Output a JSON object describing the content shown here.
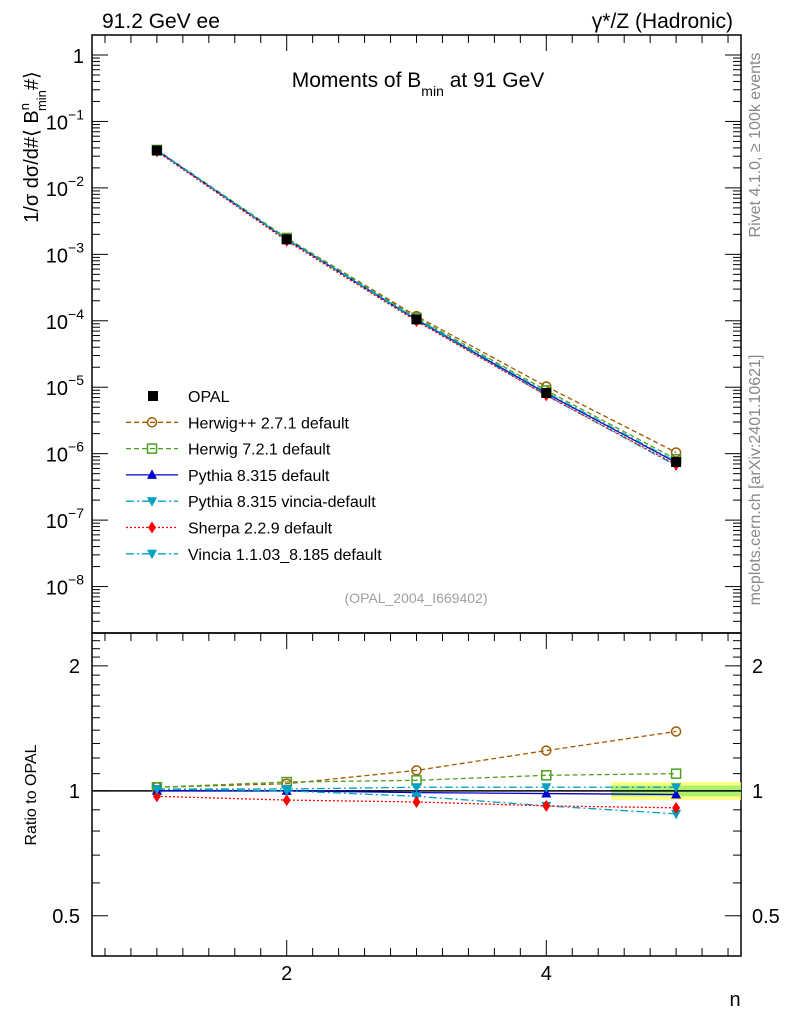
{
  "header": {
    "left": "91.2 GeV ee",
    "right": "γ*/Z (Hadronic)"
  },
  "side_labels": {
    "rivet": "Rivet 4.1.0, ≥ 100k events",
    "mcplots": "mcplots.cern.ch [arXiv:2401.10621]"
  },
  "chart_data": {
    "type": "line",
    "title": "Moments of B",
    "title_sub": "min",
    "title_tail": " at 91 GeV",
    "analysis_id": "(OPAL_2004_I669402)",
    "ylabel_main": "1/σ  dσ/d#⟨ B",
    "ylabel_sup": "n",
    "ylabel_sub": "min",
    "ylabel_tail": "#⟩",
    "ylabel_ratio": "Ratio to OPAL",
    "xlabel": "n",
    "x_range": [
      0.5,
      5.5
    ],
    "y_range_main": [
      2e-09,
      2
    ],
    "y_range_ratio": [
      0.4,
      2.4
    ],
    "x_ticks": [
      "2",
      "4"
    ],
    "y_ticks_main": [
      {
        "v": 1,
        "m": "1",
        "e": ""
      },
      {
        "v": 0.1,
        "m": "10",
        "e": "−1"
      },
      {
        "v": 0.01,
        "m": "10",
        "e": "−2"
      },
      {
        "v": 0.001,
        "m": "10",
        "e": "−3"
      },
      {
        "v": 0.0001,
        "m": "10",
        "e": "−4"
      },
      {
        "v": 1e-05,
        "m": "10",
        "e": "−5"
      },
      {
        "v": 1e-06,
        "m": "10",
        "e": "−6"
      },
      {
        "v": 1e-07,
        "m": "10",
        "e": "−7"
      },
      {
        "v": 1e-08,
        "m": "10",
        "e": "−8"
      }
    ],
    "y_ticks_ratio": [
      "0.5",
      "1",
      "2"
    ],
    "x": [
      1,
      2,
      3,
      4,
      5
    ],
    "reference": {
      "name": "OPAL",
      "values": [
        0.0365,
        0.00168,
        0.000105,
        8.2e-06,
        7.5e-07
      ],
      "band": [
        0.02,
        0.02,
        0.03,
        0.04,
        0.05
      ]
    },
    "series": [
      {
        "name": "Herwig++ 2.7.1 default",
        "color": "#a05a00",
        "dash": "5,3",
        "marker": "circle",
        "ratio": [
          1.02,
          1.04,
          1.12,
          1.25,
          1.39
        ]
      },
      {
        "name": "Herwig 7.2.1 default",
        "color": "#4fa01e",
        "dash": "5,3",
        "marker": "square",
        "ratio": [
          1.02,
          1.05,
          1.06,
          1.09,
          1.1
        ]
      },
      {
        "name": "Pythia 8.315 default",
        "color": "#0000cc",
        "dash": "",
        "marker": "triangle-up",
        "ratio": [
          1.0,
          1.0,
          0.99,
          0.985,
          0.98
        ]
      },
      {
        "name": "Pythia 8.315 vincia-default",
        "color": "#00a0c0",
        "dash": "8,3,2,3",
        "marker": "triangle-down",
        "ratio": [
          1.01,
          1.0,
          0.97,
          0.92,
          0.88
        ]
      },
      {
        "name": "Sherpa 2.2.9 default",
        "color": "#ff0000",
        "dash": "2,2",
        "marker": "diamond",
        "ratio": [
          0.97,
          0.95,
          0.94,
          0.92,
          0.91
        ]
      },
      {
        "name": "Vincia 1.1.03_8.185 default",
        "color": "#00a0c0",
        "dash": "8,3,2,3",
        "marker": "triangle-down",
        "ratio": [
          1.01,
          1.01,
          1.02,
          1.02,
          1.02
        ]
      }
    ]
  }
}
